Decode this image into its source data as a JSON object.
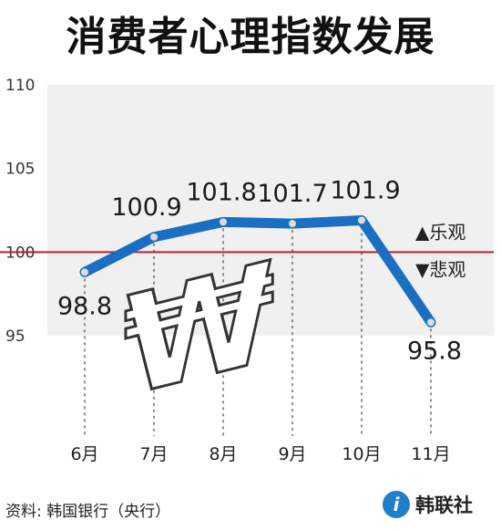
{
  "title": "消费者心理指数发展",
  "source": "资料: 韩国银行（央行）",
  "logo": {
    "mark": "i",
    "text": "韩联社"
  },
  "legend": {
    "up": "▲乐观",
    "down": "▼悲观"
  },
  "colors": {
    "line": "#1a6fc3",
    "point": "#dcdcdc",
    "reference": "#c0202a",
    "legend_up": "#c0202a",
    "legend_down": "#c0202a",
    "band": "#f0f0f0"
  },
  "chart_data": {
    "type": "line",
    "title": "消费者心理指数发展",
    "categories": [
      "6月",
      "7月",
      "8月",
      "9月",
      "10月",
      "11月"
    ],
    "values": [
      98.8,
      100.9,
      101.8,
      101.7,
      101.9,
      95.8
    ],
    "value_labels": [
      "98.8",
      "100.9",
      "101.8",
      "101.7",
      "101.9",
      "95.8"
    ],
    "ylim": [
      95,
      110
    ],
    "yticks": [
      95,
      100,
      105,
      110
    ],
    "ytick_labels": [
      "95",
      "100",
      "105",
      "110"
    ],
    "reference_line": 100,
    "grid": false
  }
}
